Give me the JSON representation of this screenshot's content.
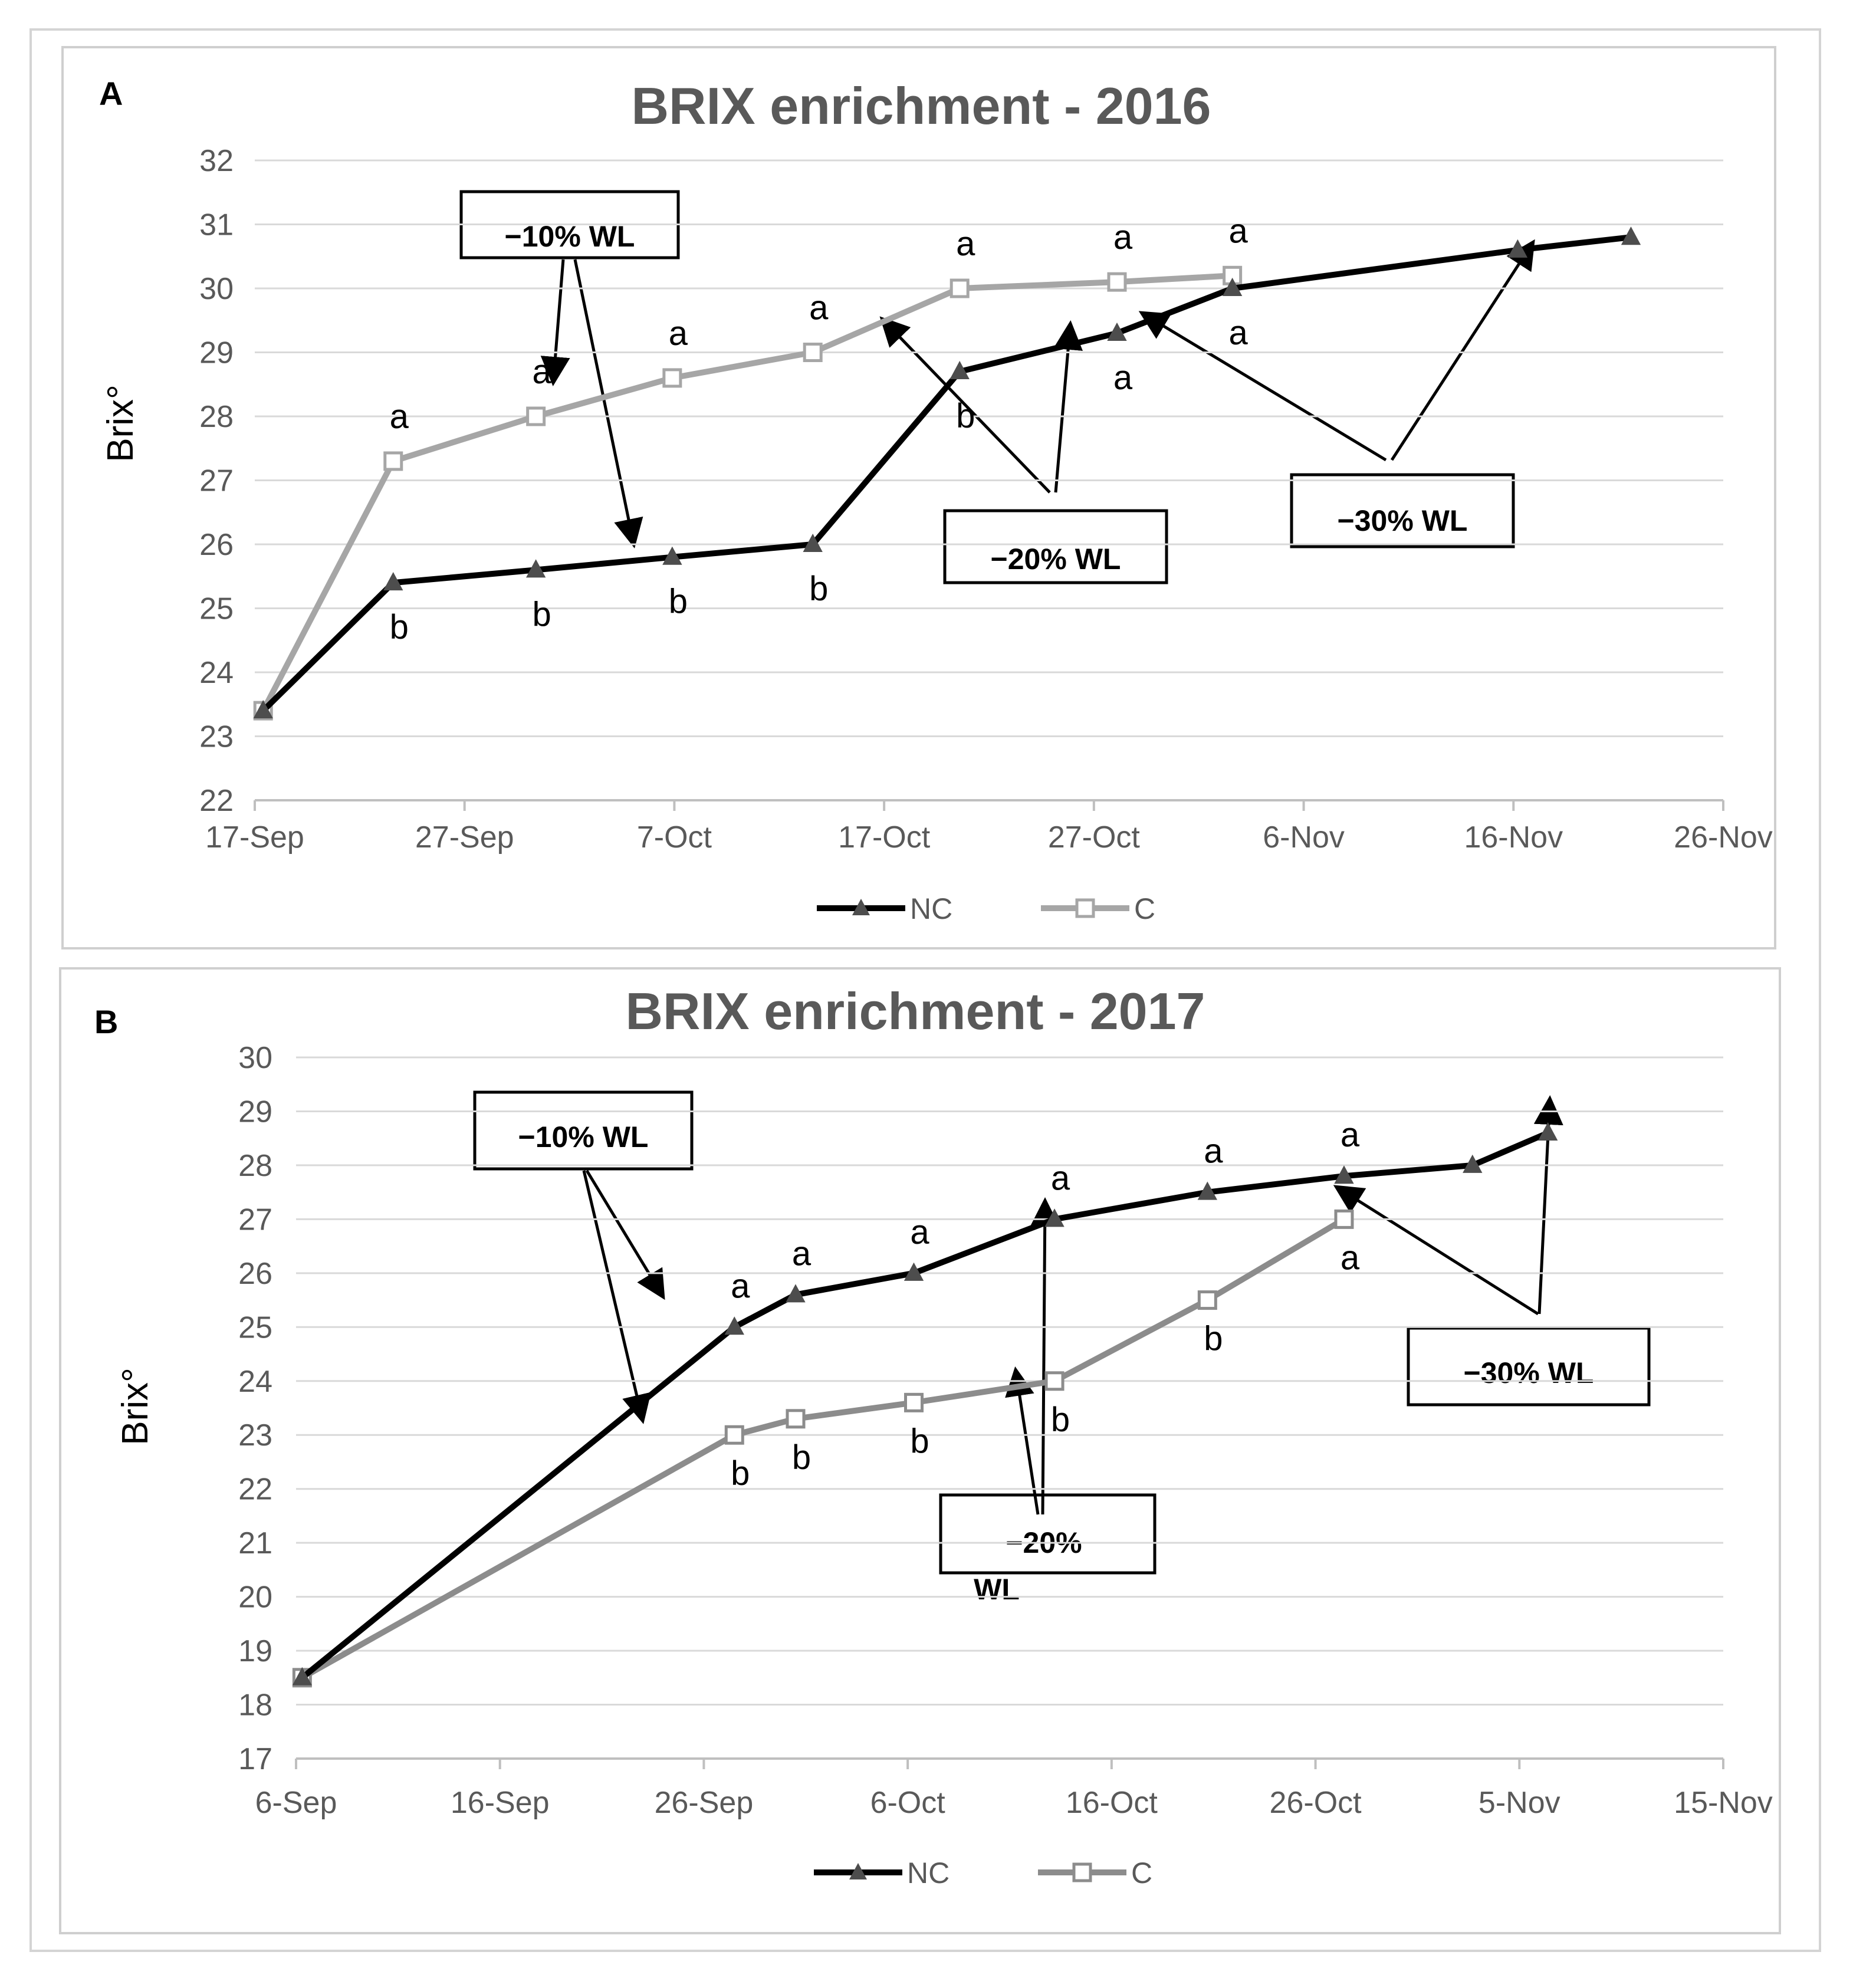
{
  "chart_data": [
    {
      "type": "line",
      "panel_label": "A",
      "title": "BRIX enrichment - 2016",
      "xlabel": "",
      "ylabel": "Brix°",
      "ylim": [
        22,
        32
      ],
      "ytick_step": 1,
      "x_is_day_of_year": true,
      "xlim": [
        261,
        331
      ],
      "xticks": [
        {
          "day": 261,
          "label": "17-Sep"
        },
        {
          "day": 271,
          "label": "27-Sep"
        },
        {
          "day": 281,
          "label": "7-Oct"
        },
        {
          "day": 291,
          "label": "17-Oct"
        },
        {
          "day": 301,
          "label": "27-Oct"
        },
        {
          "day": 311,
          "label": "6-Nov"
        },
        {
          "day": 321,
          "label": "16-Nov"
        },
        {
          "day": 331,
          "label": "26-Nov"
        }
      ],
      "series": [
        {
          "name": "NC",
          "color": "#000000",
          "marker": "triangle",
          "x": [
            261.4,
            267.6,
            274.4,
            280.9,
            287.6,
            294.6,
            302.1,
            307.6,
            321.2,
            326.6
          ],
          "values": [
            23.4,
            25.4,
            25.6,
            25.8,
            26.0,
            28.7,
            29.3,
            30.0,
            30.6,
            30.8
          ],
          "labels": [
            "",
            "b",
            "b",
            "b",
            "b",
            "b",
            "a",
            "a",
            "",
            ""
          ]
        },
        {
          "name": "C",
          "color": "#a6a6a6",
          "marker": "square",
          "x": [
            261.4,
            267.6,
            274.4,
            280.9,
            287.6,
            294.6,
            302.1,
            307.6
          ],
          "values": [
            23.4,
            27.3,
            28.0,
            28.6,
            29.0,
            30.0,
            30.1,
            30.2
          ],
          "labels": [
            "",
            "a",
            "a",
            "a",
            "a",
            "a",
            "a",
            "a"
          ]
        }
      ],
      "annotations": [
        "−10% WL",
        "−20% WL",
        "−30% WL"
      ]
    },
    {
      "type": "line",
      "panel_label": "B",
      "title": "BRIX enrichment - 2017",
      "xlabel": "",
      "ylabel": "Brix°",
      "ylim": [
        17,
        30
      ],
      "ytick_step": 1,
      "x_is_day_of_year": true,
      "xlim": [
        249,
        319
      ],
      "xticks": [
        {
          "day": 249,
          "label": "6-Sep"
        },
        {
          "day": 259,
          "label": "16-Sep"
        },
        {
          "day": 269,
          "label": "26-Sep"
        },
        {
          "day": 279,
          "label": "6-Oct"
        },
        {
          "day": 289,
          "label": "16-Oct"
        },
        {
          "day": 299,
          "label": "26-Oct"
        },
        {
          "day": 309,
          "label": "5-Nov"
        },
        {
          "day": 319,
          "label": "15-Nov"
        }
      ],
      "series": [
        {
          "name": "NC",
          "color": "#000000",
          "marker": "triangle",
          "x": [
            249.3,
            270.5,
            273.5,
            279.3,
            286.2,
            293.7,
            300.4,
            306.7,
            310.4
          ],
          "values": [
            18.5,
            25.0,
            25.6,
            26.0,
            27.0,
            27.5,
            27.8,
            28.0,
            28.6
          ],
          "labels": [
            "",
            "a",
            "a",
            "a",
            "a",
            "a",
            "a",
            "",
            ""
          ]
        },
        {
          "name": "C",
          "color": "#8c8c8c",
          "marker": "square",
          "x": [
            249.3,
            270.5,
            273.5,
            279.3,
            286.2,
            293.7,
            300.4
          ],
          "values": [
            18.5,
            23.0,
            23.3,
            23.6,
            24.0,
            25.5,
            27.0
          ],
          "labels": [
            "",
            "b",
            "b",
            "b",
            "b",
            "b",
            "a"
          ]
        }
      ],
      "annotations": [
        "−10% WL",
        "−20%",
        "WL",
        "−30% WL"
      ]
    }
  ]
}
